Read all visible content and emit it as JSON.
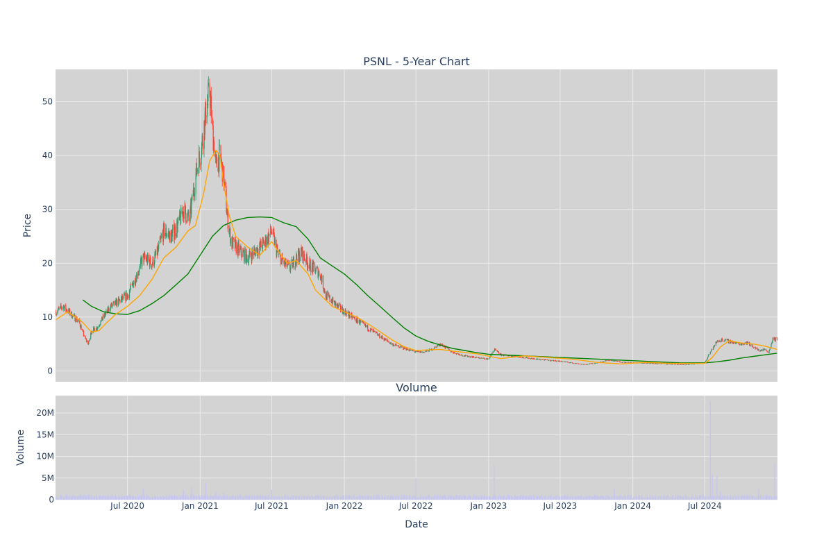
{
  "chart_data": {
    "type": "candlestick",
    "title": "PSNL - 5-Year Chart",
    "xlabel": "Date",
    "price_panel": {
      "ylabel": "Price",
      "ylim": [
        -2,
        56
      ],
      "yticks": [
        0,
        10,
        20,
        30,
        40,
        50
      ],
      "grid": true,
      "background": "#d3d3d3",
      "colors": {
        "up": "#3d9970",
        "down": "#ff4136",
        "ma_short": "#ffa500",
        "ma_long": "#008000"
      },
      "close_series": {
        "x": [
          "2020-01-02",
          "2020-01-20",
          "2020-02-10",
          "2020-03-01",
          "2020-03-16",
          "2020-03-24",
          "2020-04-01",
          "2020-04-15",
          "2020-05-01",
          "2020-05-20",
          "2020-06-10",
          "2020-07-01",
          "2020-07-20",
          "2020-08-10",
          "2020-09-01",
          "2020-09-15",
          "2020-10-01",
          "2020-10-20",
          "2020-11-05",
          "2020-11-20",
          "2020-12-05",
          "2020-12-20",
          "2021-01-05",
          "2021-01-15",
          "2021-01-25",
          "2021-02-01",
          "2021-02-10",
          "2021-02-20",
          "2021-03-01",
          "2021-03-10",
          "2021-03-20",
          "2021-04-01",
          "2021-04-15",
          "2021-05-01",
          "2021-05-15",
          "2021-06-01",
          "2021-06-15",
          "2021-07-01",
          "2021-07-15",
          "2021-08-01",
          "2021-08-15",
          "2021-09-01",
          "2021-09-15",
          "2021-10-01",
          "2021-10-15",
          "2021-11-01",
          "2021-11-15",
          "2021-12-01",
          "2021-12-15",
          "2022-01-01",
          "2022-01-20",
          "2022-02-10",
          "2022-03-01",
          "2022-03-20",
          "2022-04-10",
          "2022-05-01",
          "2022-05-20",
          "2022-06-10",
          "2022-07-01",
          "2022-07-20",
          "2022-08-10",
          "2022-09-01",
          "2022-10-01",
          "2022-11-01",
          "2022-12-01",
          "2023-01-01",
          "2023-01-15",
          "2023-02-01",
          "2023-03-01",
          "2023-04-01",
          "2023-05-01",
          "2023-06-01",
          "2023-07-01",
          "2023-08-01",
          "2023-09-01",
          "2023-10-01",
          "2023-11-01",
          "2023-12-01",
          "2024-01-01",
          "2024-02-01",
          "2024-03-01",
          "2024-04-01",
          "2024-05-01",
          "2024-06-01",
          "2024-07-01",
          "2024-07-10",
          "2024-07-20",
          "2024-08-01",
          "2024-08-15",
          "2024-09-01",
          "2024-09-15",
          "2024-10-01",
          "2024-10-15",
          "2024-11-01",
          "2024-11-15",
          "2024-12-01",
          "2024-12-10",
          "2024-12-20",
          "2024-12-31"
        ],
        "close": [
          11,
          12,
          10.5,
          9,
          6,
          5,
          7.5,
          8,
          10,
          12,
          13,
          14,
          17,
          21,
          20,
          22,
          26,
          25,
          27,
          30,
          28,
          36,
          42,
          48,
          52,
          45,
          38,
          40,
          36,
          29,
          24,
          23,
          22,
          21,
          22,
          23,
          24,
          26,
          22,
          20,
          19,
          21,
          22,
          20,
          19,
          18,
          14,
          13,
          12,
          11,
          10,
          9,
          8,
          7,
          6,
          5,
          4.5,
          4,
          3.5,
          3.5,
          4,
          5,
          3.5,
          2.8,
          2.5,
          2.2,
          4,
          3,
          2.8,
          2.5,
          2.2,
          2,
          1.8,
          1.5,
          1.2,
          1.5,
          2,
          1.7,
          1.5,
          1.5,
          1.4,
          1.3,
          1.2,
          1.3,
          1.5,
          3,
          4,
          5.5,
          5.8,
          5.5,
          5.2,
          5,
          5.3,
          4.5,
          3.8,
          4,
          3.5,
          6,
          5.8
        ]
      },
      "ma_short": {
        "x": [
          "2020-01-02",
          "2020-02-01",
          "2020-03-10",
          "2020-04-01",
          "2020-04-20",
          "2020-05-10",
          "2020-06-01",
          "2020-07-01",
          "2020-08-01",
          "2020-09-01",
          "2020-10-01",
          "2020-11-01",
          "2020-12-01",
          "2020-12-20",
          "2021-01-10",
          "2021-01-25",
          "2021-02-10",
          "2021-02-20",
          "2021-03-01",
          "2021-03-15",
          "2021-04-01",
          "2021-05-01",
          "2021-06-01",
          "2021-07-01",
          "2021-07-20",
          "2021-08-10",
          "2021-09-01",
          "2021-10-01",
          "2021-10-20",
          "2021-11-10",
          "2021-12-01",
          "2022-01-01",
          "2022-02-01",
          "2022-03-01",
          "2022-04-01",
          "2022-05-01",
          "2022-06-01",
          "2022-07-01",
          "2022-08-01",
          "2022-09-01",
          "2022-10-01",
          "2022-12-01",
          "2023-02-01",
          "2023-04-01",
          "2023-06-01",
          "2023-08-01",
          "2023-10-01",
          "2023-12-01",
          "2024-02-01",
          "2024-04-01",
          "2024-06-01",
          "2024-07-01",
          "2024-07-20",
          "2024-08-10",
          "2024-09-01",
          "2024-10-01",
          "2024-11-01",
          "2024-12-01",
          "2024-12-31"
        ],
        "value": [
          9.5,
          11,
          9,
          7.2,
          7.5,
          9,
          10.5,
          12,
          14,
          17,
          21,
          23,
          26,
          27,
          33,
          39,
          41,
          40,
          35,
          29,
          25,
          23,
          21.5,
          24,
          22,
          20,
          20.5,
          18,
          15,
          13.5,
          12,
          11,
          10,
          8.8,
          7.3,
          5.8,
          4.5,
          3.8,
          3.9,
          4,
          3.7,
          3.2,
          2.3,
          2.8,
          2.5,
          2.2,
          1.6,
          1.3,
          1.6,
          1.4,
          1.4,
          1.4,
          2.5,
          4.5,
          5.6,
          5.2,
          5,
          4.6,
          4
        ]
      },
      "ma_long": {
        "x": [
          "2020-03-10",
          "2020-04-01",
          "2020-05-01",
          "2020-06-01",
          "2020-07-01",
          "2020-08-01",
          "2020-09-01",
          "2020-10-01",
          "2020-11-01",
          "2020-12-01",
          "2021-01-01",
          "2021-02-01",
          "2021-03-01",
          "2021-04-01",
          "2021-05-01",
          "2021-06-01",
          "2021-07-01",
          "2021-08-01",
          "2021-09-01",
          "2021-10-01",
          "2021-11-01",
          "2021-12-01",
          "2022-01-01",
          "2022-02-01",
          "2022-03-01",
          "2022-04-01",
          "2022-05-01",
          "2022-06-01",
          "2022-07-01",
          "2022-08-01",
          "2022-09-01",
          "2022-10-01",
          "2022-11-01",
          "2022-12-01",
          "2023-01-01",
          "2023-03-01",
          "2023-05-01",
          "2023-07-01",
          "2023-09-01",
          "2023-11-01",
          "2024-01-01",
          "2024-03-01",
          "2024-05-01",
          "2024-07-01",
          "2024-08-01",
          "2024-09-01",
          "2024-10-01",
          "2024-11-01",
          "2024-12-01",
          "2024-12-31"
        ],
        "value": [
          13.2,
          12,
          11,
          10.6,
          10.5,
          11.2,
          12.5,
          14,
          16,
          18,
          21.5,
          25,
          27,
          28,
          28.5,
          28.6,
          28.5,
          27.5,
          26.8,
          24.5,
          21,
          19.5,
          18,
          16,
          14,
          12,
          10,
          8,
          6.5,
          5.5,
          4.8,
          4.2,
          3.8,
          3.4,
          3.1,
          2.9,
          2.7,
          2.5,
          2.3,
          2.1,
          1.9,
          1.7,
          1.5,
          1.5,
          1.7,
          2,
          2.4,
          2.7,
          3,
          3.3
        ]
      }
    },
    "volume_panel": {
      "title": "Volume",
      "ylabel": "Volume",
      "ylim": [
        0,
        24000000
      ],
      "yticks": [
        "0",
        "5M",
        "10M",
        "15M",
        "20M"
      ],
      "background": "#d3d3d3",
      "bar_color": "#c6c6ee",
      "spikes": {
        "x": [
          "2020-08-10",
          "2020-11-20",
          "2020-12-10",
          "2021-01-15",
          "2021-02-10",
          "2021-03-01",
          "2021-07-01",
          "2022-07-01",
          "2023-01-15",
          "2023-11-15",
          "2024-07-15",
          "2024-07-20",
          "2024-08-01",
          "2024-08-10",
          "2024-11-15",
          "2024-12-25"
        ],
        "volume": [
          2500000,
          2200000,
          3000000,
          4000000,
          1800000,
          1600000,
          2300000,
          5000000,
          8000000,
          2700000,
          22800000,
          6000000,
          5500000,
          2000000,
          2500000,
          8200000
        ]
      }
    },
    "x_axis": {
      "range": [
        "2020-01-01",
        "2025-01-01"
      ],
      "ticks": [
        {
          "label": "Jul 2020",
          "date": "2020-07-01"
        },
        {
          "label": "Jan 2021",
          "date": "2021-01-01"
        },
        {
          "label": "Jul 2021",
          "date": "2021-07-01"
        },
        {
          "label": "Jan 2022",
          "date": "2022-01-01"
        },
        {
          "label": "Jul 2022",
          "date": "2022-07-01"
        },
        {
          "label": "Jan 2023",
          "date": "2023-01-01"
        },
        {
          "label": "Jul 2023",
          "date": "2023-07-01"
        },
        {
          "label": "Jan 2024",
          "date": "2024-01-01"
        },
        {
          "label": "Jul 2024",
          "date": "2024-07-01"
        }
      ]
    }
  }
}
